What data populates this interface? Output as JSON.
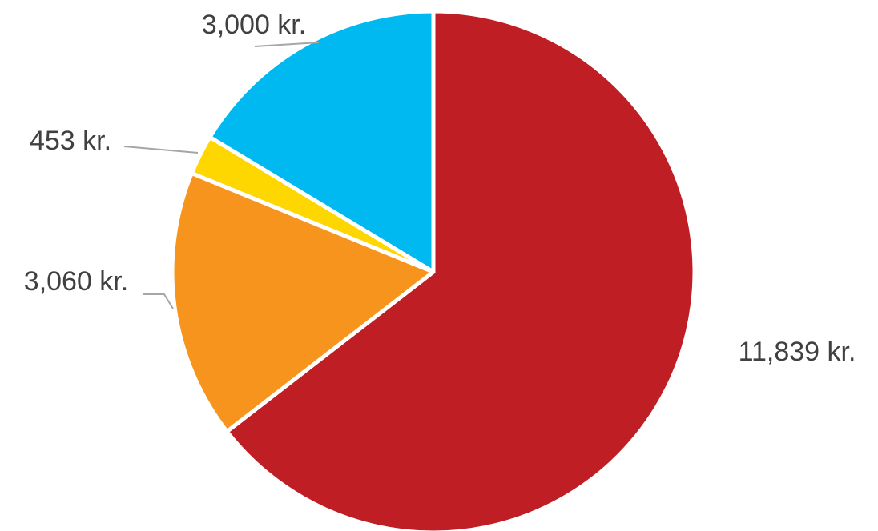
{
  "chart_data": {
    "type": "pie",
    "values": [
      11839,
      3060,
      453,
      3000
    ],
    "value_labels": [
      "11,839 kr.",
      "3,060 kr.",
      "453 kr.",
      "3,000 kr."
    ],
    "colors": [
      "#be1e24",
      "#f7941d",
      "#ffd700",
      "#00b9f1"
    ]
  }
}
